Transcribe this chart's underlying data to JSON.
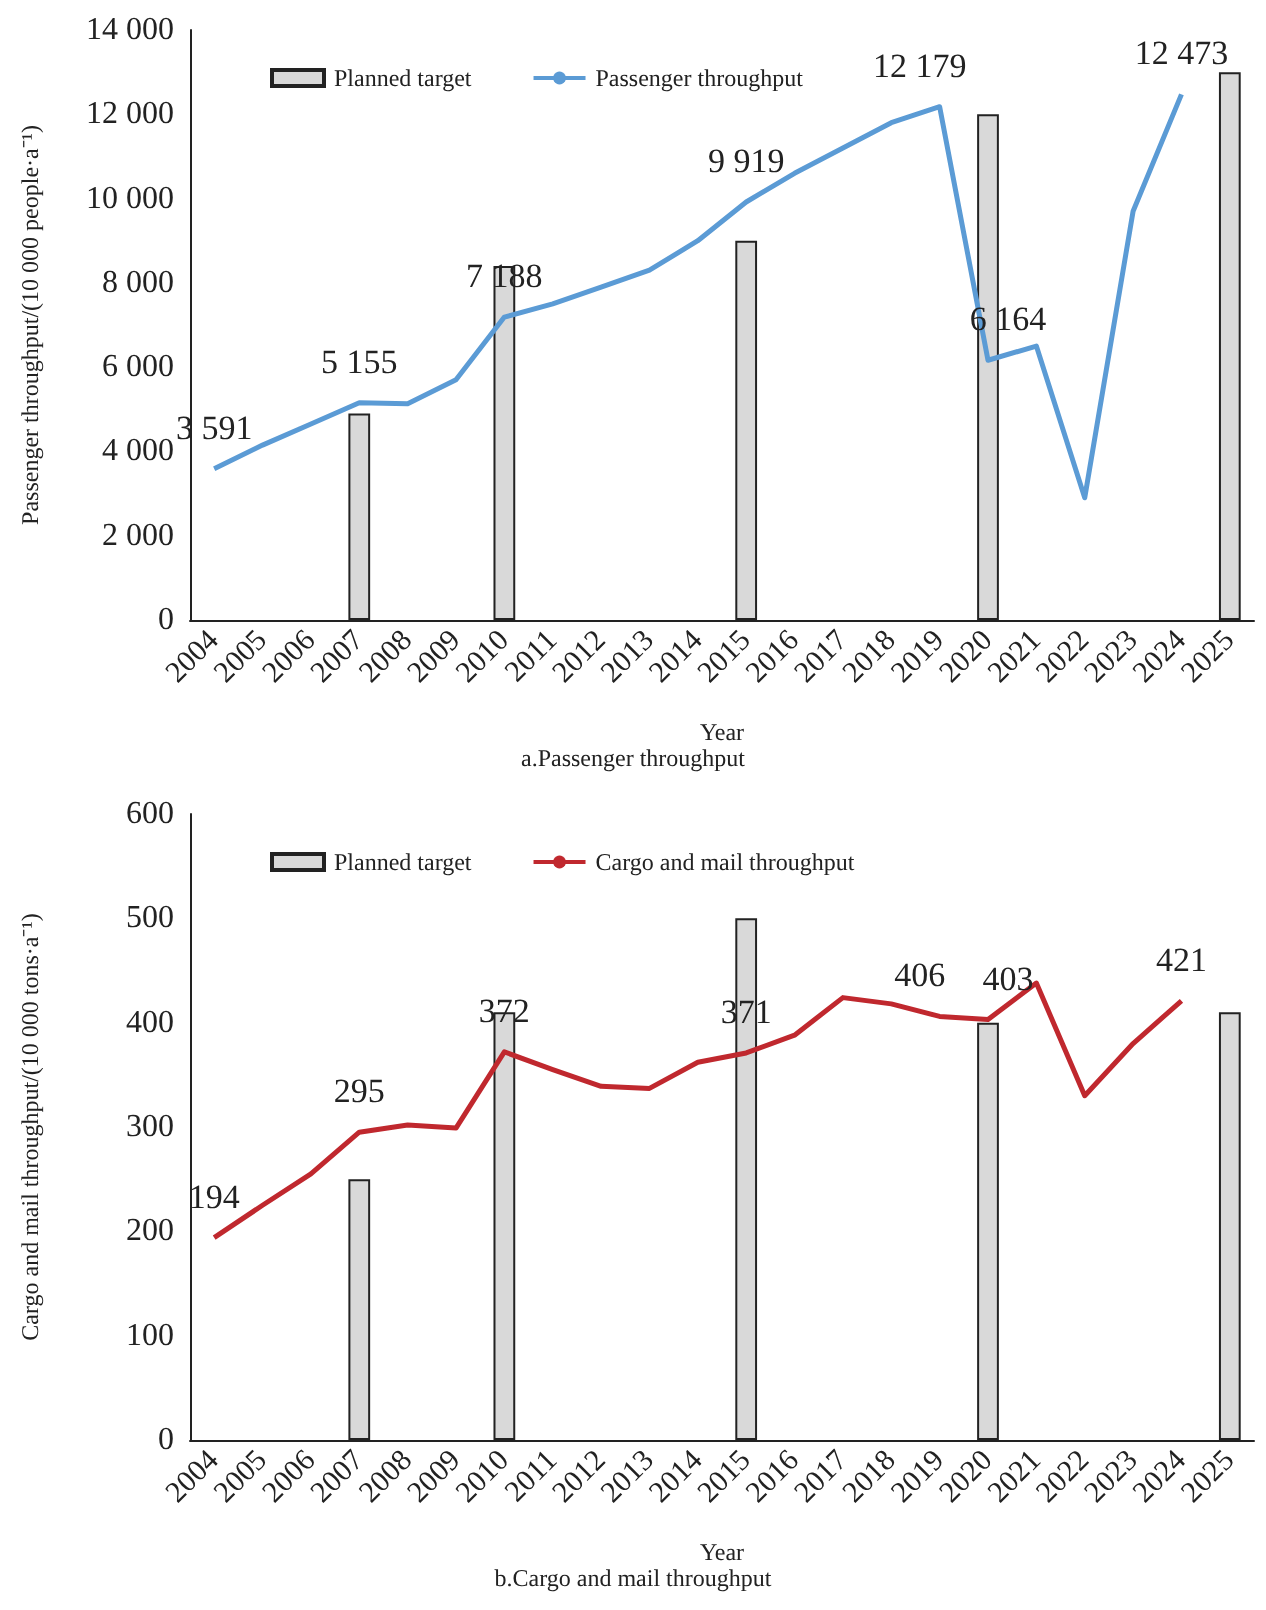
{
  "chart_data": [
    {
      "type": "bar",
      "title": "a.Passenger throughput",
      "xlabel": "Year",
      "ylabel": "Passenger throughput/(10 000 people·a⁻¹)",
      "categories": [
        "2004",
        "2005",
        "2006",
        "2007",
        "2008",
        "2009",
        "2010",
        "2011",
        "2012",
        "2013",
        "2014",
        "2015",
        "2016",
        "2017",
        "2018",
        "2019",
        "2020",
        "2021",
        "2022",
        "2023",
        "2024",
        "2025"
      ],
      "series": [
        {
          "name": "Planned target",
          "color": "#d9d9d9",
          "values": [
            null,
            null,
            null,
            4900,
            null,
            null,
            8400,
            null,
            null,
            null,
            null,
            9000,
            null,
            null,
            null,
            null,
            12000,
            null,
            null,
            null,
            null,
            13000
          ]
        },
        {
          "name": "Passenger throughput",
          "type": "line",
          "color": "#5b9bd5",
          "values": [
            3591,
            4150,
            4650,
            5155,
            5130,
            5700,
            7188,
            7500,
            7900,
            8300,
            9000,
            9919,
            10600,
            11200,
            11800,
            12179,
            6164,
            6500,
            2900,
            9700,
            12473,
            null
          ],
          "value_labels": [
            "3 591",
            null,
            null,
            "5 155",
            null,
            null,
            "7 188",
            null,
            null,
            null,
            null,
            "9 919",
            null,
            null,
            null,
            "12 179",
            "6 164",
            null,
            null,
            null,
            "12 473",
            null
          ]
        }
      ],
      "ylim": [
        0,
        14000
      ],
      "yticks": [
        0,
        {
          "value": 2000,
          "label": "2 000"
        },
        {
          "value": 4000,
          "label": "4 000"
        },
        {
          "value": 6000,
          "label": "6 000"
        },
        {
          "value": 8000,
          "label": "8 000"
        },
        {
          "value": 10000,
          "label": "10 000"
        },
        {
          "value": 12000,
          "label": "12 000"
        },
        {
          "value": 14000,
          "label": "14 000"
        }
      ],
      "legend": "top",
      "marker": "none"
    },
    {
      "type": "bar",
      "title": "b.Cargo and mail throughput",
      "xlabel": "Year",
      "ylabel": "Cargo and mail throughput/(10 000 tons·a⁻¹)",
      "categories": [
        "2004",
        "2005",
        "2006",
        "2007",
        "2008",
        "2009",
        "2010",
        "2011",
        "2012",
        "2013",
        "2014",
        "2015",
        "2016",
        "2017",
        "2018",
        "2019",
        "2020",
        "2021",
        "2022",
        "2023",
        "2024",
        "2025"
      ],
      "series": [
        {
          "name": "Planned target",
          "color": "#d9d9d9",
          "values": [
            null,
            null,
            null,
            250,
            null,
            null,
            410,
            null,
            null,
            null,
            null,
            500,
            null,
            null,
            null,
            null,
            400,
            null,
            null,
            null,
            null,
            410
          ]
        },
        {
          "name": "Cargo and mail throughput",
          "type": "line",
          "color": "#c0282e",
          "values": [
            194,
            225,
            255,
            295,
            302,
            299,
            372,
            355,
            339,
            337,
            362,
            371,
            388,
            424,
            418,
            406,
            403,
            438,
            330,
            380,
            421,
            null
          ],
          "value_labels": [
            "194",
            null,
            null,
            "295",
            null,
            null,
            "372",
            null,
            null,
            null,
            null,
            "371",
            null,
            null,
            null,
            "406",
            "403",
            null,
            null,
            null,
            "421",
            null
          ]
        }
      ],
      "ylim": [
        0,
        600
      ],
      "yticks": [
        0,
        100,
        200,
        300,
        400,
        500,
        600
      ],
      "legend": "top",
      "marker": "none"
    }
  ]
}
